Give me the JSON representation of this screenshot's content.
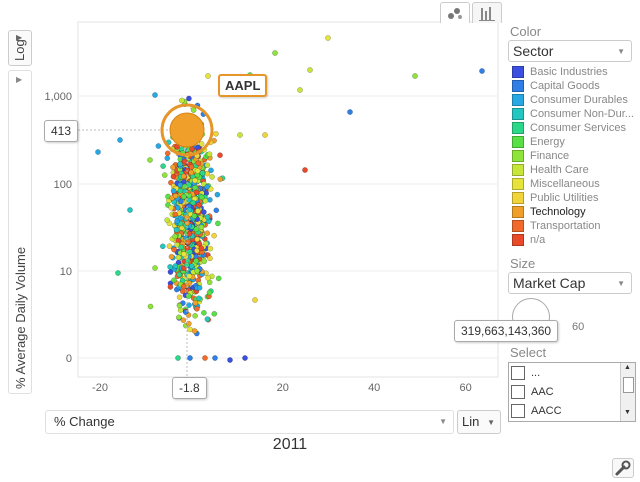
{
  "tabs": {
    "bubble_icon": "bubble-chart-icon",
    "bar_icon": "bar-chart-icon"
  },
  "y_axis": {
    "scale_label": "Log",
    "metric_label": "% Average Daily Volume"
  },
  "x_axis": {
    "metric_label": "% Change",
    "scale_label": "Lin"
  },
  "year": "2011",
  "callouts": {
    "highlight": "AAPL",
    "y_value": "413",
    "x_value": "-1.8",
    "size_value": "319,663,143,360"
  },
  "color_panel": {
    "title": "Color",
    "selected": "Sector",
    "legend": [
      {
        "label": "Basic Industries",
        "color": "#3b50e0"
      },
      {
        "label": "Capital Goods",
        "color": "#2f7fe6"
      },
      {
        "label": "Consumer Durables",
        "color": "#27a8e3"
      },
      {
        "label": "Consumer Non-Dur...",
        "color": "#23c6c0"
      },
      {
        "label": "Consumer Services",
        "color": "#2bd88a"
      },
      {
        "label": "Energy",
        "color": "#58e046"
      },
      {
        "label": "Finance",
        "color": "#8ee43a"
      },
      {
        "label": "Health Care",
        "color": "#c6e63a"
      },
      {
        "label": "Miscellaneous",
        "color": "#e6e43a"
      },
      {
        "label": "Public Utilities",
        "color": "#f0d43a"
      },
      {
        "label": "Technology",
        "color": "#f0a02a",
        "selected": true
      },
      {
        "label": "Transportation",
        "color": "#f06a2a"
      },
      {
        "label": "n/a",
        "color": "#e84a2a"
      }
    ]
  },
  "size_panel": {
    "title": "Size",
    "selected": "Market Cap",
    "mark": "60"
  },
  "select_panel": {
    "title": "Select",
    "items": [
      "...",
      "AAC",
      "AACC"
    ]
  },
  "chart_data": {
    "type": "scatter",
    "x_ticks": [
      "-20",
      "0",
      "20",
      "40",
      "60"
    ],
    "y_ticks": [
      "1,000",
      "100",
      "10",
      "0"
    ],
    "xlabel": "% Change",
    "ylabel": "% Average Daily Volume",
    "x_range": [
      -23,
      64
    ],
    "y_scale": "log",
    "highlight": {
      "label": "AAPL",
      "x": -1.8,
      "y": 413
    }
  }
}
